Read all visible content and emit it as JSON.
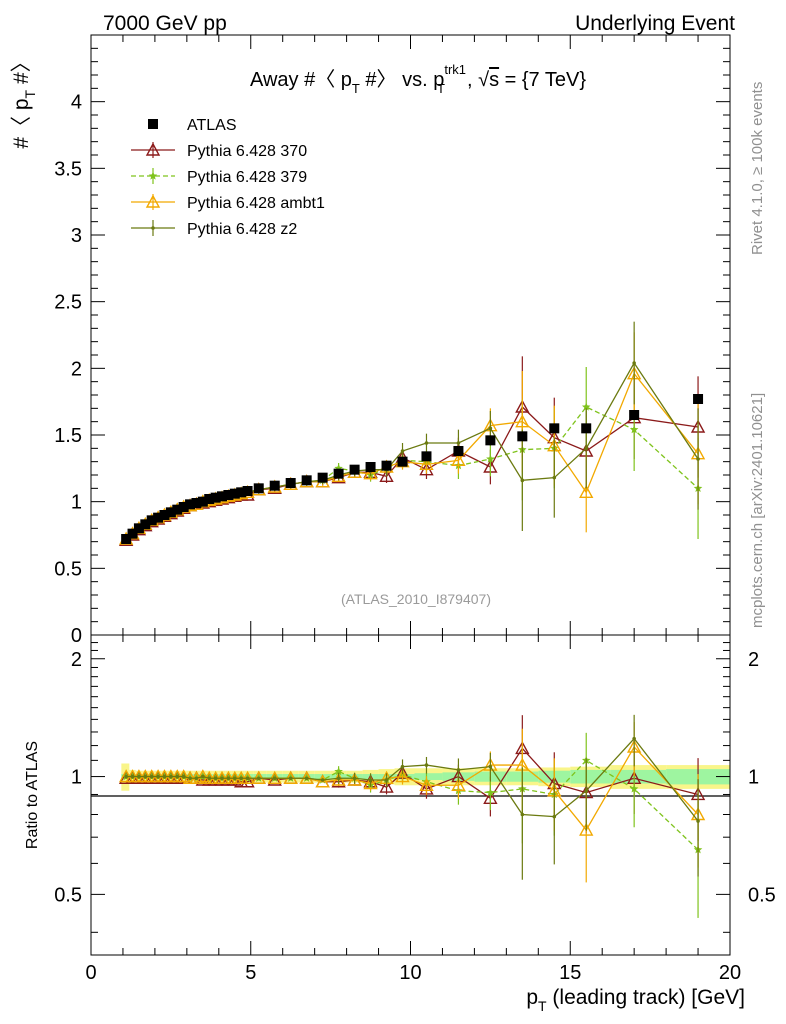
{
  "header": {
    "left": "7000 GeV pp",
    "right": "Underlying Event"
  },
  "side_labels": {
    "rivet": "Rivet 4.1.0, ≥ 100k events",
    "mcplots": "mcplots.cern.ch [arXiv:2401.10621]"
  },
  "chart_data": [
    {
      "type": "scatter",
      "title": "Away #〈 p_T #〉 vs. p_T^trk1, √s = {7 TeV}",
      "title_parts": {
        "a": "Away #〈 p",
        "a_sub": "T",
        "b": " #〉 vs. p",
        "b_sup": "trk1",
        "b_sub": "T",
        "c": ", ",
        "sqrt": "√",
        "s": "s",
        "d": " = {7 TeV}"
      },
      "ylabel": "#〈 p_T #〉",
      "ylabel_parts": {
        "a": "#〈 p",
        "sub": "T",
        "b": " #〉"
      },
      "xlim": [
        0,
        20
      ],
      "ylim": [
        0,
        4.5
      ],
      "yticks": [
        "0",
        "0.5",
        "1",
        "1.5",
        "2",
        "2.5",
        "3",
        "3.5",
        "4"
      ],
      "ytick_values": [
        0,
        0.5,
        1,
        1.5,
        2,
        2.5,
        3,
        3.5,
        4
      ],
      "watermark": "(ATLAS_2010_I879407)",
      "legend": [
        {
          "name": "ATLAS",
          "color": "#000000",
          "marker": "square"
        },
        {
          "name": "Pythia 6.428 370",
          "color": "#8b1a1a",
          "marker": "triangle"
        },
        {
          "name": "Pythia 6.428 379",
          "color": "#7fc31c",
          "marker": "star",
          "dashed": true
        },
        {
          "name": "Pythia 6.428 ambt1",
          "color": "#f2a900",
          "marker": "triangle"
        },
        {
          "name": "Pythia 6.428 z2",
          "color": "#6b7a10",
          "marker": "dot"
        }
      ],
      "x": [
        1.1,
        1.3,
        1.5,
        1.7,
        1.9,
        2.1,
        2.3,
        2.5,
        2.7,
        2.9,
        3.1,
        3.3,
        3.5,
        3.7,
        3.9,
        4.1,
        4.3,
        4.5,
        4.7,
        4.9,
        5.25,
        5.75,
        6.25,
        6.75,
        7.25,
        7.75,
        8.25,
        8.75,
        9.25,
        9.75,
        10.5,
        11.5,
        12.5,
        13.5,
        14.5,
        15.5,
        17.0,
        19.0
      ],
      "series": [
        {
          "name": "ATLAS",
          "values": [
            0.72,
            0.76,
            0.8,
            0.83,
            0.86,
            0.88,
            0.9,
            0.92,
            0.94,
            0.96,
            0.98,
            0.99,
            1.0,
            1.02,
            1.03,
            1.04,
            1.05,
            1.06,
            1.07,
            1.08,
            1.1,
            1.12,
            1.14,
            1.16,
            1.18,
            1.21,
            1.24,
            1.26,
            1.27,
            1.3,
            1.34,
            1.38,
            1.46,
            1.49,
            1.55,
            1.55,
            1.65,
            1.77
          ]
        },
        {
          "name": "Pythia 6.428 370",
          "values": [
            0.71,
            0.75,
            0.79,
            0.82,
            0.85,
            0.87,
            0.89,
            0.91,
            0.93,
            0.95,
            0.97,
            0.98,
            0.99,
            1.0,
            1.01,
            1.02,
            1.03,
            1.04,
            1.05,
            1.05,
            1.09,
            1.1,
            1.13,
            1.15,
            1.15,
            1.18,
            1.22,
            1.22,
            1.19,
            1.33,
            1.24,
            1.38,
            1.26,
            1.71,
            1.48,
            1.38,
            1.63,
            1.56
          ]
        },
        {
          "name": "Pythia 6.428 379",
          "values": [
            0.72,
            0.76,
            0.8,
            0.83,
            0.86,
            0.88,
            0.9,
            0.92,
            0.94,
            0.96,
            0.97,
            0.98,
            1.0,
            1.01,
            1.02,
            1.03,
            1.04,
            1.05,
            1.06,
            1.07,
            1.09,
            1.11,
            1.13,
            1.15,
            1.16,
            1.25,
            1.23,
            1.2,
            1.25,
            1.31,
            1.3,
            1.27,
            1.32,
            1.39,
            1.4,
            1.71,
            1.54,
            1.1
          ]
        },
        {
          "name": "Pythia 6.428 ambt1",
          "values": [
            0.72,
            0.76,
            0.8,
            0.83,
            0.86,
            0.88,
            0.9,
            0.92,
            0.94,
            0.96,
            0.97,
            0.98,
            1.0,
            1.01,
            1.02,
            1.03,
            1.04,
            1.05,
            1.06,
            1.07,
            1.09,
            1.11,
            1.13,
            1.15,
            1.15,
            1.19,
            1.22,
            1.21,
            1.26,
            1.3,
            1.28,
            1.31,
            1.57,
            1.6,
            1.42,
            1.07,
            1.96,
            1.36
          ]
        },
        {
          "name": "Pythia 6.428 z2",
          "values": [
            0.72,
            0.76,
            0.8,
            0.83,
            0.86,
            0.88,
            0.9,
            0.92,
            0.94,
            0.96,
            0.97,
            0.98,
            1.0,
            1.01,
            1.02,
            1.03,
            1.04,
            1.05,
            1.06,
            1.07,
            1.09,
            1.11,
            1.13,
            1.15,
            1.16,
            1.2,
            1.23,
            1.24,
            1.24,
            1.38,
            1.44,
            1.44,
            1.55,
            1.16,
            1.18,
            1.4,
            2.04,
            1.32
          ]
        }
      ],
      "errors": [
        0.02,
        0.02,
        0.02,
        0.02,
        0.02,
        0.02,
        0.02,
        0.02,
        0.02,
        0.02,
        0.02,
        0.02,
        0.02,
        0.02,
        0.02,
        0.02,
        0.02,
        0.02,
        0.02,
        0.02,
        0.03,
        0.03,
        0.03,
        0.03,
        0.03,
        0.04,
        0.04,
        0.05,
        0.05,
        0.06,
        0.07,
        0.1,
        0.13,
        0.38,
        0.3,
        0.3,
        0.31,
        0.38
      ]
    },
    {
      "type": "scatter",
      "ylabel": "Ratio to ATLAS",
      "xlabel": "p_T (leading track) [GeV]",
      "xlabel_parts": {
        "a": "p",
        "sub": "T",
        "b": " (leading track) [GeV]"
      },
      "xlim": [
        0,
        20
      ],
      "xticks": [
        "0",
        "5",
        "10",
        "15",
        "20"
      ],
      "xtick_values": [
        0,
        5,
        10,
        15,
        20
      ],
      "ylim": [
        0.35,
        2.3
      ],
      "yscale": "log",
      "yticks": [
        "0.5",
        "1",
        "2"
      ],
      "ytick_values": [
        0.5,
        1,
        2
      ],
      "band_colors": {
        "inner": "#9ef5a0",
        "outer": "#f9f58a"
      },
      "band_inner_halfwidth": [
        0.015,
        0.015,
        0.015,
        0.015,
        0.015,
        0.015,
        0.015,
        0.015,
        0.015,
        0.015,
        0.015,
        0.015,
        0.015,
        0.015,
        0.015,
        0.015,
        0.015,
        0.015,
        0.015,
        0.015,
        0.015,
        0.015,
        0.015,
        0.015,
        0.015,
        0.015,
        0.015,
        0.015,
        0.015,
        0.015,
        0.02,
        0.025,
        0.03,
        0.03,
        0.035,
        0.04,
        0.04,
        0.045
      ],
      "band_outer_halfwidth": [
        0.08,
        0.04,
        0.035,
        0.035,
        0.035,
        0.035,
        0.035,
        0.035,
        0.035,
        0.035,
        0.035,
        0.035,
        0.035,
        0.035,
        0.035,
        0.035,
        0.035,
        0.035,
        0.035,
        0.035,
        0.035,
        0.035,
        0.035,
        0.035,
        0.035,
        0.035,
        0.035,
        0.04,
        0.045,
        0.05,
        0.05,
        0.05,
        0.05,
        0.05,
        0.055,
        0.06,
        0.07,
        0.07
      ],
      "series": [
        {
          "name": "Pythia 6.428 370",
          "values": [
            0.99,
            0.99,
            0.99,
            0.99,
            0.99,
            0.99,
            0.99,
            0.99,
            0.99,
            0.99,
            0.99,
            0.99,
            0.98,
            0.98,
            0.98,
            0.98,
            0.98,
            0.98,
            0.97,
            0.97,
            0.99,
            0.98,
            0.99,
            0.99,
            0.97,
            0.97,
            0.98,
            0.97,
            0.94,
            1.02,
            0.93,
            1.0,
            0.88,
            1.18,
            0.96,
            0.91,
            0.99,
            0.9
          ]
        },
        {
          "name": "Pythia 6.428 379",
          "values": [
            1.0,
            1.0,
            1.0,
            1.0,
            1.0,
            1.0,
            1.0,
            1.0,
            1.0,
            1.0,
            0.99,
            0.99,
            1.0,
            0.99,
            0.99,
            0.99,
            0.99,
            0.99,
            0.99,
            0.99,
            0.99,
            0.99,
            0.99,
            0.99,
            0.98,
            1.03,
            0.99,
            0.95,
            0.98,
            1.01,
            0.97,
            0.92,
            0.91,
            0.93,
            0.9,
            1.1,
            0.93,
            0.65
          ]
        },
        {
          "name": "Pythia 6.428 ambt1",
          "values": [
            1.0,
            1.0,
            1.0,
            1.0,
            1.0,
            1.0,
            1.0,
            1.0,
            1.0,
            1.0,
            0.99,
            0.99,
            1.0,
            0.99,
            0.99,
            0.99,
            0.99,
            0.99,
            0.99,
            0.99,
            0.99,
            0.99,
            0.99,
            0.99,
            0.97,
            0.98,
            0.98,
            0.96,
            0.99,
            1.0,
            0.95,
            0.95,
            1.07,
            1.07,
            0.92,
            0.73,
            1.19,
            0.8
          ]
        },
        {
          "name": "Pythia 6.428 z2",
          "values": [
            1.0,
            1.0,
            1.0,
            1.0,
            1.0,
            1.0,
            1.0,
            1.0,
            1.0,
            1.0,
            0.99,
            0.99,
            1.0,
            0.99,
            0.99,
            0.99,
            0.99,
            0.99,
            0.99,
            0.99,
            0.99,
            0.99,
            0.99,
            0.99,
            0.98,
            0.99,
            0.99,
            0.98,
            0.98,
            1.06,
            1.07,
            1.04,
            1.06,
            0.8,
            0.79,
            0.92,
            1.25,
            0.77
          ]
        }
      ]
    }
  ]
}
